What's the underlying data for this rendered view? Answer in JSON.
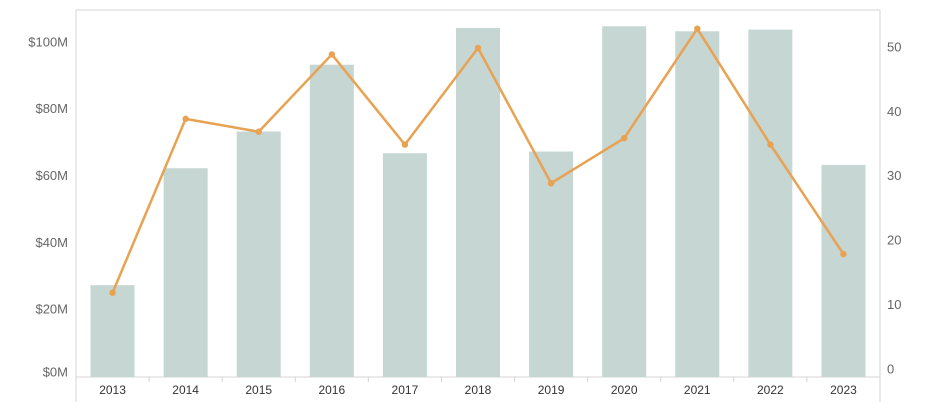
{
  "chart_data": {
    "type": "bar",
    "title": "",
    "categories": [
      "2013",
      "2014",
      "2015",
      "2016",
      "2017",
      "2018",
      "2019",
      "2020",
      "2021",
      "2022",
      "2023"
    ],
    "series": [
      {
        "type": "bar",
        "axis": "left",
        "color": "#c5d6d3",
        "values": [
          27.5,
          62.5,
          73.5,
          93.5,
          67,
          104.5,
          67.5,
          105,
          103.5,
          104,
          63.5
        ]
      },
      {
        "type": "line",
        "axis": "right",
        "color": "#e8a252",
        "values": [
          12,
          39,
          37,
          49,
          35,
          50,
          29,
          36,
          53,
          35,
          18
        ]
      }
    ],
    "y_left": {
      "ylim": [
        0,
        110
      ],
      "ticks": [
        0,
        20,
        40,
        60,
        80,
        100
      ],
      "tick_labels": [
        "$0M",
        "$20M",
        "$40M",
        "$60M",
        "$80M",
        "$100M"
      ]
    },
    "y_right": {
      "ylim": [
        0,
        55
      ],
      "ticks": [
        0,
        10,
        20,
        30,
        40,
        50
      ],
      "tick_labels": [
        "0",
        "10",
        "20",
        "30",
        "40",
        "50"
      ]
    },
    "xlabel": "",
    "ylabel": "",
    "grid": false,
    "colors": {
      "axis": "#d4d4d4",
      "bar": "#c5d6d3",
      "line": "#e8a252"
    }
  }
}
